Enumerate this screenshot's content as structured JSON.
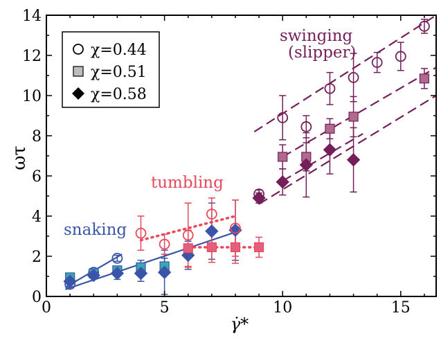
{
  "chart_data": {
    "type": "scatter",
    "xlabel": "γ̇*",
    "ylabel": "ωτ",
    "xlim": [
      0,
      16.5
    ],
    "ylim": [
      0,
      14
    ],
    "x_ticks": [
      0,
      5,
      10,
      15
    ],
    "y_ticks": [
      0,
      2,
      4,
      6,
      8,
      10,
      12,
      14
    ],
    "grid": false,
    "legend_position": "top-left",
    "colors": {
      "snaking": "#3a55a8",
      "tumbling": "#e8485a",
      "swinging": "#741f5a",
      "snaking_teal": "#39a8b2"
    },
    "legend": [
      {
        "marker": "circle-open",
        "label": "χ=0.44"
      },
      {
        "marker": "square-gray",
        "label": "χ=0.51"
      },
      {
        "marker": "diamond-black",
        "label": "χ=0.58"
      }
    ],
    "annotations": [
      {
        "text": "snaking",
        "regime": "snaking"
      },
      {
        "text": "tumbling",
        "regime": "tumbling"
      },
      {
        "text": "swinging",
        "regime": "swinging"
      },
      {
        "text": "(slipper)",
        "regime": "swinging"
      }
    ],
    "series": [
      {
        "marker": "circle-open",
        "regime": "snaking",
        "points": [
          {
            "x": 1,
            "y": 0.6,
            "err": 0.15
          },
          {
            "x": 2,
            "y": 1.2,
            "err": 0.15
          },
          {
            "x": 3,
            "y": 1.9,
            "err": 0.15
          }
        ]
      },
      {
        "marker": "square",
        "regime": "snaking",
        "points": [
          {
            "x": 1,
            "y": 0.95,
            "err": 0.15
          },
          {
            "x": 2,
            "y": 1.15,
            "err": 0.15
          },
          {
            "x": 3,
            "y": 1.3,
            "err": 0.2
          },
          {
            "x": 4,
            "y": 1.45,
            "err": 0.35
          },
          {
            "x": 5,
            "y": 1.5,
            "err": 0.4
          }
        ]
      },
      {
        "marker": "diamond",
        "regime": "snaking",
        "points": [
          {
            "x": 1,
            "y": 0.75,
            "err": 0.15
          },
          {
            "x": 2,
            "y": 1.05,
            "err": 0.15
          },
          {
            "x": 3,
            "y": 1.15,
            "err": 0.3
          },
          {
            "x": 4,
            "y": 1.15,
            "err": 0.4
          },
          {
            "x": 5,
            "y": 1.2,
            "err": 1.1
          },
          {
            "x": 6,
            "y": 2.05,
            "err": 0.7
          },
          {
            "x": 7,
            "y": 3.25,
            "err": 1.4
          },
          {
            "x": 8,
            "y": 3.3,
            "err": 1.5
          }
        ]
      },
      {
        "marker": "circle-open",
        "regime": "tumbling",
        "points": [
          {
            "x": 4,
            "y": 3.15,
            "err": 0.85
          },
          {
            "x": 5,
            "y": 2.6,
            "err": 0.5
          },
          {
            "x": 6,
            "y": 3.05,
            "err": 1.6
          },
          {
            "x": 7,
            "y": 4.1,
            "err": 0.8
          },
          {
            "x": 8,
            "y": 3.4,
            "err": 1.4
          }
        ]
      },
      {
        "marker": "square",
        "regime": "tumbling",
        "points": [
          {
            "x": 6,
            "y": 2.4,
            "err": 0.9
          },
          {
            "x": 7,
            "y": 2.45,
            "err": 0.75
          },
          {
            "x": 8,
            "y": 2.45,
            "err": 0.8
          },
          {
            "x": 9,
            "y": 2.45,
            "err": 0.5
          }
        ]
      },
      {
        "marker": "circle-open",
        "regime": "swinging",
        "points": [
          {
            "x": 9,
            "y": 5.1,
            "err": 0.2
          },
          {
            "x": 10,
            "y": 8.9,
            "err": 1.1
          },
          {
            "x": 11,
            "y": 8.45,
            "err": 0.55
          },
          {
            "x": 12,
            "y": 10.35,
            "err": 0.8
          },
          {
            "x": 13,
            "y": 10.9,
            "err": 1.2
          },
          {
            "x": 14,
            "y": 11.65,
            "err": 0.5
          },
          {
            "x": 15,
            "y": 11.95,
            "err": 0.7
          },
          {
            "x": 16,
            "y": 13.45,
            "err": 0.35
          }
        ]
      },
      {
        "marker": "square",
        "regime": "swinging",
        "points": [
          {
            "x": 10,
            "y": 6.95,
            "err": 0.6
          },
          {
            "x": 11,
            "y": 6.95,
            "err": 0.7
          },
          {
            "x": 12,
            "y": 8.35,
            "err": 0.5
          },
          {
            "x": 13,
            "y": 8.95,
            "err": 1.0
          },
          {
            "x": 16,
            "y": 10.85,
            "err": 0.5
          }
        ]
      },
      {
        "marker": "diamond",
        "regime": "swinging",
        "points": [
          {
            "x": 9,
            "y": 4.9,
            "err": 0.25
          },
          {
            "x": 10,
            "y": 5.7,
            "err": 0.65
          },
          {
            "x": 11,
            "y": 6.55,
            "err": 1.6
          },
          {
            "x": 12,
            "y": 7.3,
            "err": 1.2
          },
          {
            "x": 13,
            "y": 6.8,
            "err": 1.6
          }
        ]
      }
    ],
    "fit_lines": [
      {
        "style": "solid",
        "regime": "snaking",
        "x": [
          0.8,
          3.2
        ],
        "y": [
          0.45,
          2.1
        ]
      },
      {
        "style": "solid",
        "regime": "snaking",
        "x": [
          0.8,
          8.0
        ],
        "y": [
          0.35,
          3.2
        ]
      },
      {
        "style": "dotted",
        "regime": "tumbling",
        "x": [
          4.0,
          8.0
        ],
        "y": [
          2.8,
          4.0
        ]
      },
      {
        "style": "dotted",
        "regime": "tumbling",
        "x": [
          6.0,
          9.2
        ],
        "y": [
          2.45,
          2.45
        ]
      },
      {
        "style": "dashed",
        "regime": "swinging",
        "x": [
          9.0,
          16.5
        ],
        "y": [
          4.6,
          10.0
        ]
      },
      {
        "style": "dashed",
        "regime": "swinging",
        "x": [
          8.8,
          16.5
        ],
        "y": [
          8.2,
          14.0
        ]
      },
      {
        "style": "dashed",
        "regime": "swinging",
        "x": [
          10.0,
          16.5
        ],
        "y": [
          6.95,
          11.4
        ]
      },
      {
        "style": "dashed",
        "regime": "swinging",
        "x": [
          10.0,
          13.4
        ],
        "y": [
          5.75,
          8.1
        ]
      }
    ]
  }
}
